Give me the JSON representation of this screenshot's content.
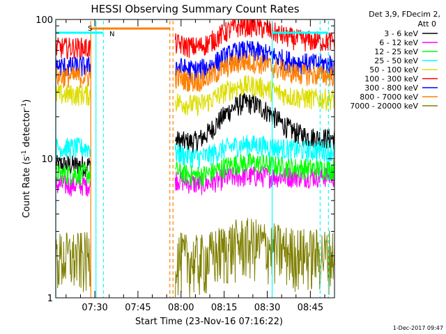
{
  "chart_data": {
    "type": "line",
    "title": "HESSI Observing Summary Count Rates",
    "xlabel": "Start Time (23-Nov-16 07:16:22)",
    "ylabel_main": "Count Rate (s",
    "ylabel_sup1": "-1",
    "ylabel_mid": " detector",
    "ylabel_sup2": "-1",
    "ylabel_end": ")",
    "y_scale": "log",
    "ylim": [
      1,
      100
    ],
    "xlim_minutes": [
      0,
      97
    ],
    "x_ticks": [
      {
        "label": "07:30",
        "minutes": 13.6
      },
      {
        "label": "07:45",
        "minutes": 28.6
      },
      {
        "label": "08:00",
        "minutes": 43.6
      },
      {
        "label": "08:15",
        "minutes": 58.6
      },
      {
        "label": "08:30",
        "minutes": 73.6
      },
      {
        "label": "08:45",
        "minutes": 88.6
      }
    ],
    "y_ticks": [
      {
        "label": "1",
        "value": 1
      },
      {
        "label": "10",
        "value": 10
      },
      {
        "label": "100",
        "value": 100
      }
    ],
    "legend_header": [
      "Det 3,9, FDecim 2,",
      "Att 0"
    ],
    "series": [
      {
        "name": "3 - 6 keV",
        "color": "#000000",
        "before_gap": 9.0,
        "after_gap": 14.0,
        "hump": 1.8
      },
      {
        "name": "6 - 12 keV",
        "color": "#ff00ff",
        "before_gap": 6.5,
        "after_gap": 7.5,
        "hump": 1.0
      },
      {
        "name": "12 - 25 keV",
        "color": "#00ff00",
        "before_gap": 7.8,
        "after_gap": 8.5,
        "hump": 1.1
      },
      {
        "name": "25 - 50 keV",
        "color": "#00ffff",
        "before_gap": 12.0,
        "after_gap": 11.5,
        "hump": 1.1
      },
      {
        "name": "50 - 100 keV",
        "color": "#dddd00",
        "before_gap": 29.0,
        "after_gap": 27.0,
        "hump": 1.25
      },
      {
        "name": "100 - 300 keV",
        "color": "#ff0000",
        "before_gap": 63.0,
        "after_gap": 70.0,
        "hump": 1.3
      },
      {
        "name": "300 - 800 keV",
        "color": "#0000ff",
        "before_gap": 46.0,
        "after_gap": 48.0,
        "hump": 1.25
      },
      {
        "name": "800 - 7000 keV",
        "color": "#ff7f00",
        "before_gap": 39.0,
        "after_gap": 40.0,
        "hump": 1.25
      },
      {
        "name": "7000 - 20000 keV",
        "color": "#7f7f00",
        "before_gap": 1.8,
        "after_gap": 1.9,
        "hump": 1.2
      }
    ],
    "data_segments_minutes": [
      [
        0,
        12.2
      ],
      [
        41.6,
        97
      ]
    ],
    "hump_center_minutes": 66.5,
    "flag_markers": [
      {
        "label": "S",
        "color": "#ff7f00"
      },
      {
        "label": "N",
        "color": "#00ffff"
      }
    ],
    "vertical_lines": [
      {
        "minutes": 0,
        "color": "#00ffff",
        "style": "solid"
      },
      {
        "minutes": 12.2,
        "color": "#ff7f00",
        "style": "solid"
      },
      {
        "minutes": 14.0,
        "color": "#00ffff",
        "style": "solid"
      },
      {
        "minutes": 16.6,
        "color": "#00ffff",
        "style": "dashed"
      },
      {
        "minutes": 39.7,
        "color": "#ff7f00",
        "style": "dashed"
      },
      {
        "minutes": 40.8,
        "color": "#ff7f00",
        "style": "dashed"
      },
      {
        "minutes": 75.3,
        "color": "#00ffff",
        "style": "solid"
      },
      {
        "minutes": 92.0,
        "color": "#00ffff",
        "style": "dashed"
      },
      {
        "minutes": 94.9,
        "color": "#00ffff",
        "style": "dashed"
      }
    ],
    "bars_top": [
      {
        "label": "S",
        "color": "#ff7f00",
        "from": 12.2,
        "to": 39.7,
        "level": 1
      },
      {
        "label": "N",
        "color": "#00ffff",
        "from": 0,
        "to": 16.6,
        "level": 2
      },
      {
        "color": "#00ffff",
        "from": 75.3,
        "to": 94.9,
        "level": 2
      }
    ],
    "footer": "1-Dec-2017 09:47"
  }
}
